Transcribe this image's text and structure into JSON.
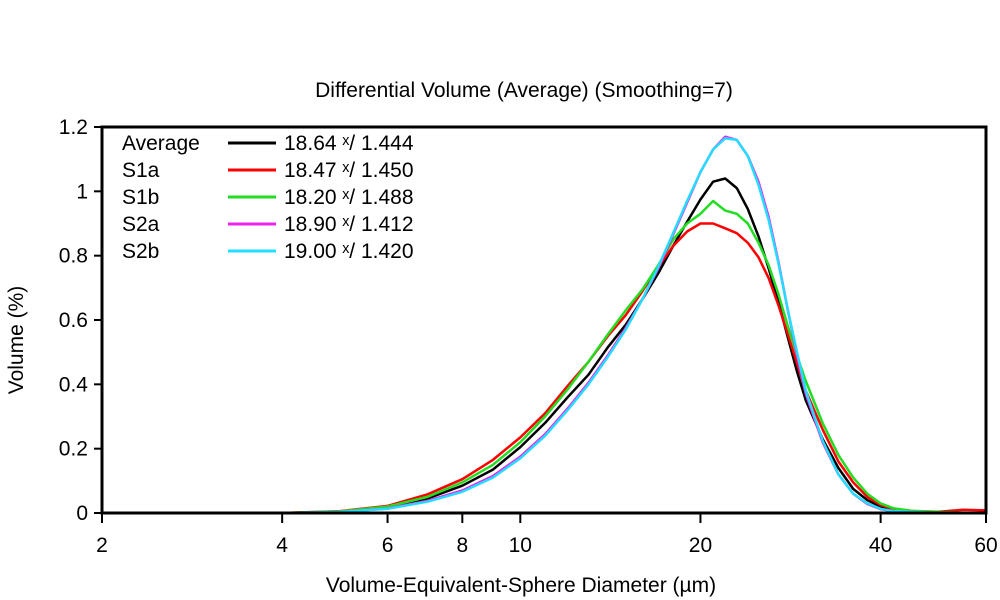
{
  "chart_data": {
    "type": "line",
    "title": "Differential Volume (Average) (Smoothing=7)",
    "xlabel": "Volume-Equivalent-Sphere Diameter (µm)",
    "ylabel": "Volume (%)",
    "xscale": "log",
    "xlim": [
      2,
      60
    ],
    "ylim": [
      0,
      1.2
    ],
    "x_ticks": [
      2,
      4,
      6,
      8,
      10,
      20,
      40,
      60
    ],
    "y_ticks": [
      0,
      0.2,
      0.4,
      0.6,
      0.8,
      1,
      1.2
    ],
    "y_tick_labels": [
      "0",
      "0.2",
      "0.4",
      "0.6",
      "0.8",
      "1",
      "1.2"
    ],
    "legend_position": "top-left",
    "series": [
      {
        "name": "Average",
        "stats": "18.64 ˣ/ 1.444",
        "color": "#000000",
        "x": [
          4,
          5,
          6,
          7,
          8,
          9,
          10,
          11,
          12,
          13,
          14,
          15,
          16,
          17,
          18,
          19,
          20,
          21,
          22,
          23,
          24,
          25,
          26,
          27,
          28,
          29,
          30,
          32,
          34,
          36,
          38,
          40,
          42,
          45,
          50,
          55,
          60
        ],
        "y": [
          0.0,
          0.004,
          0.018,
          0.045,
          0.085,
          0.135,
          0.205,
          0.28,
          0.36,
          0.43,
          0.515,
          0.585,
          0.665,
          0.745,
          0.83,
          0.905,
          0.975,
          1.03,
          1.04,
          1.01,
          0.945,
          0.86,
          0.76,
          0.655,
          0.545,
          0.44,
          0.35,
          0.23,
          0.14,
          0.075,
          0.04,
          0.02,
          0.01,
          0.005,
          0.0,
          0.0,
          0.0
        ]
      },
      {
        "name": "S1a",
        "stats": "18.47 ˣ/ 1.450",
        "color": "#ff0000",
        "x": [
          4,
          5,
          6,
          7,
          8,
          9,
          10,
          11,
          12,
          13,
          14,
          15,
          16,
          17,
          18,
          19,
          20,
          21,
          22,
          23,
          24,
          25,
          26,
          27,
          28,
          29,
          30,
          32,
          34,
          36,
          38,
          40,
          42,
          45,
          50,
          55,
          60
        ],
        "y": [
          0.0,
          0.006,
          0.022,
          0.058,
          0.105,
          0.165,
          0.235,
          0.31,
          0.395,
          0.47,
          0.55,
          0.615,
          0.69,
          0.765,
          0.83,
          0.875,
          0.9,
          0.9,
          0.885,
          0.87,
          0.84,
          0.795,
          0.73,
          0.645,
          0.555,
          0.465,
          0.38,
          0.26,
          0.16,
          0.095,
          0.05,
          0.025,
          0.012,
          0.006,
          0.004,
          0.01,
          0.008
        ]
      },
      {
        "name": "S1b",
        "stats": "18.20 ˣ/ 1.488",
        "color": "#22dd22",
        "x": [
          4,
          5,
          6,
          7,
          8,
          9,
          10,
          11,
          12,
          13,
          14,
          15,
          16,
          17,
          18,
          19,
          20,
          21,
          22,
          23,
          24,
          25,
          26,
          27,
          28,
          29,
          30,
          32,
          34,
          36,
          38,
          40,
          42,
          45,
          50,
          55,
          60
        ],
        "y": [
          0.0,
          0.005,
          0.02,
          0.05,
          0.095,
          0.15,
          0.22,
          0.3,
          0.385,
          0.47,
          0.555,
          0.63,
          0.695,
          0.77,
          0.85,
          0.9,
          0.93,
          0.97,
          0.94,
          0.93,
          0.9,
          0.84,
          0.77,
          0.68,
          0.58,
          0.49,
          0.41,
          0.28,
          0.18,
          0.11,
          0.06,
          0.03,
          0.015,
          0.007,
          0.003,
          0.001,
          0.0
        ]
      },
      {
        "name": "S2a",
        "stats": "18.90 ˣ/ 1.412",
        "color": "#ee22ee",
        "x": [
          4,
          5,
          6,
          7,
          8,
          9,
          10,
          11,
          12,
          13,
          14,
          15,
          16,
          17,
          18,
          19,
          20,
          21,
          22,
          23,
          24,
          25,
          26,
          27,
          28,
          29,
          30,
          32,
          34,
          36,
          38,
          40,
          42,
          45,
          50,
          55,
          60
        ],
        "y": [
          0.0,
          0.003,
          0.014,
          0.038,
          0.07,
          0.115,
          0.175,
          0.245,
          0.325,
          0.405,
          0.49,
          0.575,
          0.665,
          0.76,
          0.865,
          0.965,
          1.06,
          1.13,
          1.17,
          1.16,
          1.11,
          1.03,
          0.92,
          0.78,
          0.63,
          0.49,
          0.37,
          0.22,
          0.12,
          0.06,
          0.028,
          0.012,
          0.006,
          0.003,
          0.0,
          0.0,
          0.0
        ]
      },
      {
        "name": "S2b",
        "stats": "19.00 ˣ/ 1.420",
        "color": "#22ddff",
        "x": [
          4,
          5,
          6,
          7,
          8,
          9,
          10,
          11,
          12,
          13,
          14,
          15,
          16,
          17,
          18,
          19,
          20,
          21,
          22,
          23,
          24,
          25,
          26,
          27,
          28,
          29,
          30,
          32,
          34,
          36,
          38,
          40,
          42,
          45,
          50,
          55,
          60
        ],
        "y": [
          0.0,
          0.003,
          0.013,
          0.035,
          0.066,
          0.11,
          0.17,
          0.24,
          0.32,
          0.4,
          0.485,
          0.57,
          0.665,
          0.765,
          0.87,
          0.97,
          1.06,
          1.13,
          1.165,
          1.16,
          1.11,
          1.02,
          0.91,
          0.775,
          0.63,
          0.5,
          0.38,
          0.225,
          0.12,
          0.06,
          0.03,
          0.013,
          0.006,
          0.003,
          0.0,
          0.0,
          0.0
        ]
      }
    ]
  }
}
